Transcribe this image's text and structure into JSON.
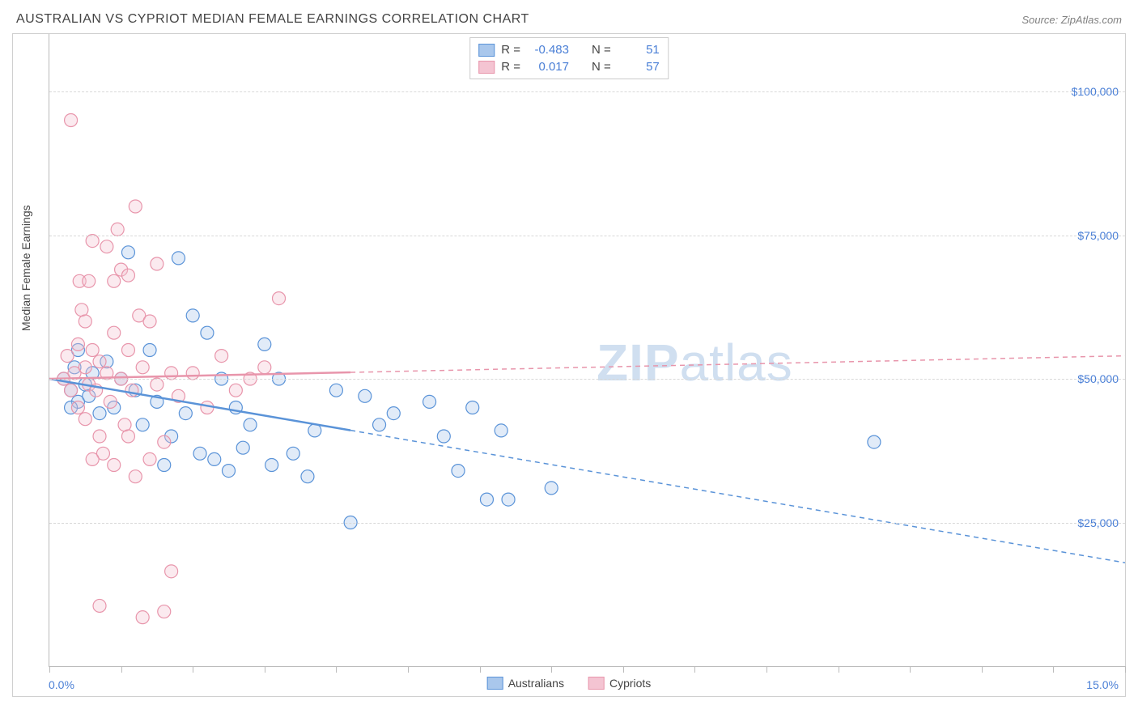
{
  "header": {
    "title": "AUSTRALIAN VS CYPRIOT MEDIAN FEMALE EARNINGS CORRELATION CHART",
    "source_label": "Source: ZipAtlas.com"
  },
  "axis": {
    "y_title": "Median Female Earnings"
  },
  "watermark": {
    "zip": "ZIP",
    "atlas": "atlas"
  },
  "chart": {
    "type": "scatter",
    "xlim": [
      0,
      15
    ],
    "ylim": [
      0,
      110000
    ],
    "x_ticks_percent": [
      0,
      1,
      2,
      3,
      4,
      5,
      6,
      7,
      8,
      9,
      10,
      11,
      12,
      13,
      14,
      15
    ],
    "x_tick_labels_shown": {
      "0": "0.0%",
      "15": "15.0%"
    },
    "y_gridlines": [
      25000,
      50000,
      75000,
      100000
    ],
    "y_tick_labels": {
      "25000": "$25,000",
      "50000": "$50,000",
      "75000": "$75,000",
      "100000": "$100,000"
    },
    "background_color": "#ffffff",
    "grid_color": "#d8d8d8",
    "axis_color": "#bbbbbb",
    "label_color": "#4a7fd6",
    "marker_radius": 8,
    "marker_stroke_width": 1.2,
    "marker_fill_opacity": 0.35,
    "series": [
      {
        "name": "Australians",
        "color_stroke": "#5a93d8",
        "color_fill": "#a9c7ec",
        "regression": {
          "x1": 0,
          "y1": 50000,
          "x2": 15,
          "y2": 18000,
          "solid_until_x": 4.2
        },
        "stats": {
          "R": "-0.483",
          "N": "51"
        },
        "points": [
          [
            0.2,
            50000
          ],
          [
            0.3,
            48000
          ],
          [
            0.35,
            52000
          ],
          [
            0.4,
            46000
          ],
          [
            0.4,
            55000
          ],
          [
            0.5,
            49000
          ],
          [
            0.55,
            47000
          ],
          [
            0.6,
            51000
          ],
          [
            0.7,
            44000
          ],
          [
            0.8,
            53000
          ],
          [
            0.9,
            45000
          ],
          [
            1.0,
            50000
          ],
          [
            1.1,
            72000
          ],
          [
            1.2,
            48000
          ],
          [
            1.3,
            42000
          ],
          [
            1.4,
            55000
          ],
          [
            1.5,
            46000
          ],
          [
            1.6,
            35000
          ],
          [
            1.7,
            40000
          ],
          [
            1.8,
            71000
          ],
          [
            1.9,
            44000
          ],
          [
            2.0,
            61000
          ],
          [
            2.1,
            37000
          ],
          [
            2.2,
            58000
          ],
          [
            2.3,
            36000
          ],
          [
            2.4,
            50000
          ],
          [
            2.5,
            34000
          ],
          [
            2.6,
            45000
          ],
          [
            2.7,
            38000
          ],
          [
            2.8,
            42000
          ],
          [
            3.0,
            56000
          ],
          [
            3.1,
            35000
          ],
          [
            3.2,
            50000
          ],
          [
            3.4,
            37000
          ],
          [
            3.6,
            33000
          ],
          [
            3.7,
            41000
          ],
          [
            4.0,
            48000
          ],
          [
            4.2,
            25000
          ],
          [
            4.4,
            47000
          ],
          [
            4.6,
            42000
          ],
          [
            4.8,
            44000
          ],
          [
            5.3,
            46000
          ],
          [
            5.5,
            40000
          ],
          [
            5.7,
            34000
          ],
          [
            5.9,
            45000
          ],
          [
            6.1,
            29000
          ],
          [
            6.3,
            41000
          ],
          [
            6.4,
            29000
          ],
          [
            7.0,
            31000
          ],
          [
            11.5,
            39000
          ],
          [
            0.3,
            45000
          ]
        ]
      },
      {
        "name": "Cypriots",
        "color_stroke": "#e895ab",
        "color_fill": "#f4c4d2",
        "regression": {
          "x1": 0,
          "y1": 50000,
          "x2": 15,
          "y2": 54000,
          "solid_until_x": 4.2
        },
        "stats": {
          "R": "0.017",
          "N": "57"
        },
        "points": [
          [
            0.2,
            50000
          ],
          [
            0.25,
            54000
          ],
          [
            0.3,
            48000
          ],
          [
            0.3,
            95000
          ],
          [
            0.35,
            51000
          ],
          [
            0.4,
            56000
          ],
          [
            0.4,
            45000
          ],
          [
            0.42,
            67000
          ],
          [
            0.45,
            62000
          ],
          [
            0.5,
            52000
          ],
          [
            0.5,
            43000
          ],
          [
            0.55,
            49000
          ],
          [
            0.6,
            55000
          ],
          [
            0.6,
            74000
          ],
          [
            0.65,
            48000
          ],
          [
            0.7,
            53000
          ],
          [
            0.7,
            40000
          ],
          [
            0.75,
            37000
          ],
          [
            0.8,
            51000
          ],
          [
            0.8,
            73000
          ],
          [
            0.85,
            46000
          ],
          [
            0.9,
            58000
          ],
          [
            0.9,
            67000
          ],
          [
            0.95,
            76000
          ],
          [
            1.0,
            69000
          ],
          [
            1.0,
            50000
          ],
          [
            1.05,
            42000
          ],
          [
            1.1,
            55000
          ],
          [
            1.1,
            68000
          ],
          [
            1.15,
            48000
          ],
          [
            1.2,
            33000
          ],
          [
            1.2,
            80000
          ],
          [
            1.25,
            61000
          ],
          [
            1.3,
            8500
          ],
          [
            1.3,
            52000
          ],
          [
            1.4,
            36000
          ],
          [
            1.4,
            60000
          ],
          [
            1.5,
            49000
          ],
          [
            1.5,
            70000
          ],
          [
            1.6,
            39000
          ],
          [
            1.7,
            16500
          ],
          [
            1.7,
            51000
          ],
          [
            1.8,
            47000
          ],
          [
            0.7,
            10500
          ],
          [
            1.6,
            9500
          ],
          [
            2.0,
            51000
          ],
          [
            2.2,
            45000
          ],
          [
            2.4,
            54000
          ],
          [
            2.6,
            48000
          ],
          [
            2.8,
            50000
          ],
          [
            3.0,
            52000
          ],
          [
            3.2,
            64000
          ],
          [
            0.6,
            36000
          ],
          [
            0.9,
            35000
          ],
          [
            1.1,
            40000
          ],
          [
            0.5,
            60000
          ],
          [
            0.55,
            67000
          ]
        ]
      }
    ]
  },
  "legend_bottom": {
    "items": [
      {
        "label": "Australians",
        "swatch_fill": "#a9c7ec",
        "swatch_stroke": "#5a93d8"
      },
      {
        "label": "Cypriots",
        "swatch_fill": "#f4c4d2",
        "swatch_stroke": "#e895ab"
      }
    ]
  },
  "legend_top": {
    "r_label": "R =",
    "n_label": "N ="
  }
}
